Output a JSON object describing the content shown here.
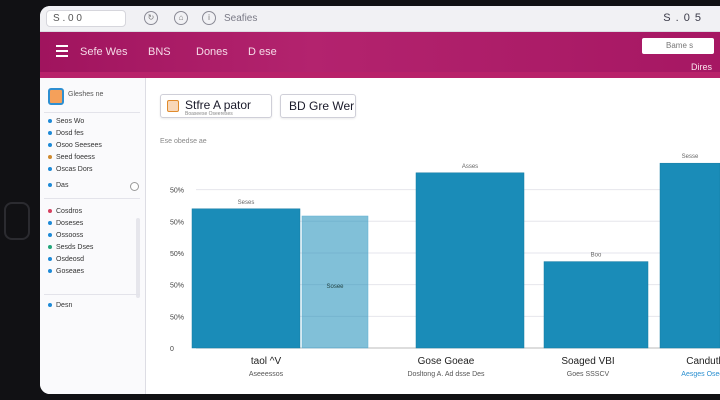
{
  "browser": {
    "tab_text": "S . 0 0",
    "title": "Seafies",
    "right_text": "S . 0 5"
  },
  "appbar": {
    "nav": [
      "Sefe Wes",
      "BNS",
      "Dones",
      "D ese"
    ],
    "search_placeholder": "Bame s",
    "action": "Dires"
  },
  "sidebar": {
    "title": "Gleshes ne",
    "group1": [
      "Seos Wo",
      "Dosd fes",
      "Osoo Seesees",
      "Seed foeess",
      "Oscas Dors"
    ],
    "group1_colors": [
      "#1e8ad6",
      "#1e8ad6",
      "#1e8ad6",
      "#cf8a2e",
      "#1e8ad6"
    ],
    "toggle_label": "Das",
    "group2": [
      "Cosdros",
      "Doseses",
      "Ossooss",
      "Sesds Dses",
      "Osdeosd",
      "Goseaes"
    ],
    "group2_colors": [
      "#d6405f",
      "#1e8ad6",
      "#1e8ad6",
      "#22a67a",
      "#1e8ad6",
      "#1e8ad6"
    ],
    "footer": "Desn"
  },
  "toolbar": {
    "button1_label": "Stfre A pator",
    "button1_sub": "Boaseese    Oseereses",
    "button2_label": "BD Gre Wer"
  },
  "colors": {
    "accent": "#a0145e",
    "bar": "#1a8cb8",
    "bar_stroke": "#157aa1"
  },
  "chart_data": {
    "type": "bar",
    "subtitle": "Ese obedse ae",
    "y_ticks": [
      "0",
      "50%",
      "50%",
      "50%",
      "50%",
      "50%"
    ],
    "categories": [
      "taol ^V",
      "Gose Goeae",
      "Soaged VBI",
      "Candutly"
    ],
    "category_sublabels": [
      "Aseeessos",
      "Dosltong A. Ad dsse Des",
      "Goes SSSCV",
      "Aesges Oseees"
    ],
    "values": [
      58,
      73,
      36,
      77
    ],
    "secondary_values": [
      55
    ],
    "data_labels": [
      "Seses",
      "Asses",
      "Boo",
      "Sesse"
    ],
    "inline_label": "Sosee",
    "ylim": [
      0,
      80
    ]
  }
}
